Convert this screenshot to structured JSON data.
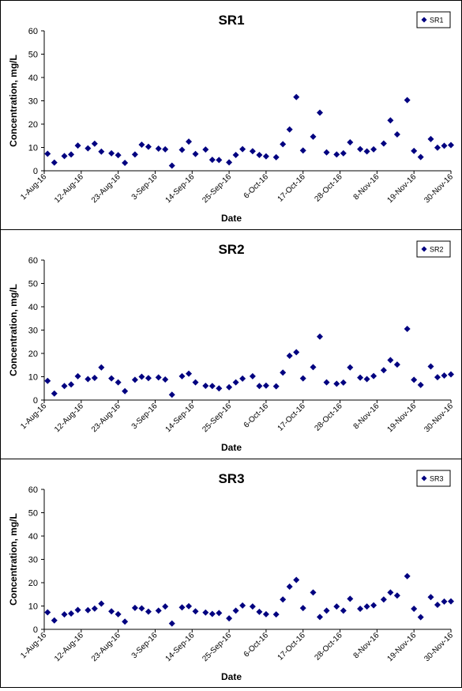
{
  "chart_data": [
    {
      "type": "scatter",
      "title": "SR1",
      "xlabel": "Date",
      "ylabel": "Concentration, mg/L",
      "ylim": [
        0,
        60
      ],
      "yticks": [
        "0",
        "10",
        "20",
        "30",
        "40",
        "50",
        "60"
      ],
      "xticks": [
        "1-Aug-16",
        "12-Aug-16",
        "23-Aug-16",
        "3-Sep-16",
        "14-Sep-16",
        "25-Sep-16",
        "6-Oct-16",
        "17-Oct-16",
        "28-Oct-16",
        "8-Nov-16",
        "19-Nov-16",
        "30-Nov-16"
      ],
      "grid": false,
      "legend_position": "top-right",
      "marker_color": "#000080",
      "series": [
        {
          "name": "SR1",
          "x": [
            "2016-08-02",
            "2016-08-04",
            "2016-08-07",
            "2016-08-09",
            "2016-08-11",
            "2016-08-14",
            "2016-08-16",
            "2016-08-18",
            "2016-08-21",
            "2016-08-23",
            "2016-08-25",
            "2016-08-28",
            "2016-08-30",
            "2016-09-01",
            "2016-09-04",
            "2016-09-06",
            "2016-09-08",
            "2016-09-11",
            "2016-09-13",
            "2016-09-15",
            "2016-09-18",
            "2016-09-20",
            "2016-09-22",
            "2016-09-25",
            "2016-09-27",
            "2016-09-29",
            "2016-10-02",
            "2016-10-04",
            "2016-10-06",
            "2016-10-09",
            "2016-10-11",
            "2016-10-13",
            "2016-10-15",
            "2016-10-17",
            "2016-10-20",
            "2016-10-22",
            "2016-10-24",
            "2016-10-27",
            "2016-10-29",
            "2016-10-31",
            "2016-11-03",
            "2016-11-05",
            "2016-11-07",
            "2016-11-10",
            "2016-11-12",
            "2016-11-14",
            "2016-11-17",
            "2016-11-19",
            "2016-11-21",
            "2016-11-24",
            "2016-11-26",
            "2016-11-28",
            "2016-11-30"
          ],
          "y": [
            7.3,
            3.5,
            6.3,
            7,
            10.8,
            9.6,
            11.6,
            8.2,
            7.5,
            6.7,
            3.4,
            7,
            11.2,
            10.3,
            9.5,
            9.2,
            2.2,
            9,
            12.5,
            7.2,
            9.1,
            4.7,
            4.6,
            3.6,
            6.8,
            9.3,
            8.4,
            6.8,
            6.2,
            5.8,
            11.4,
            17.7,
            31.6,
            8.7,
            14.6,
            24.9,
            7.9,
            7,
            7.5,
            12.2,
            9.3,
            8.3,
            9.2,
            11.7,
            21.6,
            15.6,
            30.3,
            8.5,
            5.9,
            13.6,
            9.9,
            10.7,
            11
          ]
        }
      ]
    },
    {
      "type": "scatter",
      "title": "SR2",
      "xlabel": "Date",
      "ylabel": "Concentration, mg/L",
      "ylim": [
        0,
        60
      ],
      "yticks": [
        "0",
        "10",
        "20",
        "30",
        "40",
        "50",
        "60"
      ],
      "xticks": [
        "1-Aug-16",
        "12-Aug-16",
        "23-Aug-16",
        "3-Sep-16",
        "14-Sep-16",
        "25-Sep-16",
        "6-Oct-16",
        "17-Oct-16",
        "28-Oct-16",
        "8-Nov-16",
        "19-Nov-16",
        "30-Nov-16"
      ],
      "grid": false,
      "legend_position": "top-right",
      "marker_color": "#000080",
      "series": [
        {
          "name": "SR2",
          "x": [
            "2016-08-02",
            "2016-08-04",
            "2016-08-07",
            "2016-08-09",
            "2016-08-11",
            "2016-08-14",
            "2016-08-16",
            "2016-08-18",
            "2016-08-21",
            "2016-08-23",
            "2016-08-25",
            "2016-08-28",
            "2016-08-30",
            "2016-09-01",
            "2016-09-04",
            "2016-09-06",
            "2016-09-08",
            "2016-09-11",
            "2016-09-13",
            "2016-09-15",
            "2016-09-18",
            "2016-09-20",
            "2016-09-22",
            "2016-09-25",
            "2016-09-27",
            "2016-09-29",
            "2016-10-02",
            "2016-10-04",
            "2016-10-06",
            "2016-10-09",
            "2016-10-11",
            "2016-10-13",
            "2016-10-15",
            "2016-10-17",
            "2016-10-20",
            "2016-10-22",
            "2016-10-24",
            "2016-10-27",
            "2016-10-29",
            "2016-10-31",
            "2016-11-03",
            "2016-11-05",
            "2016-11-07",
            "2016-11-10",
            "2016-11-12",
            "2016-11-14",
            "2016-11-17",
            "2016-11-19",
            "2016-11-21",
            "2016-11-24",
            "2016-11-26",
            "2016-11-28",
            "2016-11-30"
          ],
          "y": [
            8.2,
            2.8,
            6,
            6.7,
            10.2,
            9,
            9.5,
            14,
            9.3,
            7.6,
            3.8,
            8.7,
            10,
            9.4,
            9.7,
            8.8,
            2.3,
            10.2,
            11.3,
            7.6,
            6.1,
            6,
            5,
            5.5,
            7.6,
            9.2,
            10.2,
            6,
            6.2,
            5.9,
            11.8,
            19,
            20.5,
            9.3,
            14.1,
            27.2,
            7.6,
            7,
            7.5,
            14,
            9.6,
            9,
            10.3,
            12.8,
            17.1,
            15.2,
            30.5,
            8.7,
            6.5,
            14.4,
            9.8,
            10.5,
            11
          ]
        }
      ]
    },
    {
      "type": "scatter",
      "title": "SR3",
      "xlabel": "Date",
      "ylabel": "Concentration, mg/L",
      "ylim": [
        0,
        60
      ],
      "yticks": [
        "0",
        "10",
        "20",
        "30",
        "40",
        "50",
        "60"
      ],
      "xticks": [
        "1-Aug-16",
        "12-Aug-16",
        "23-Aug-16",
        "3-Sep-16",
        "14-Sep-16",
        "25-Sep-16",
        "6-Oct-16",
        "17-Oct-16",
        "28-Oct-16",
        "8-Nov-16",
        "19-Nov-16",
        "30-Nov-16"
      ],
      "grid": false,
      "legend_position": "top-right",
      "marker_color": "#000080",
      "series": [
        {
          "name": "SR3",
          "x": [
            "2016-08-02",
            "2016-08-04",
            "2016-08-07",
            "2016-08-09",
            "2016-08-11",
            "2016-08-14",
            "2016-08-16",
            "2016-08-18",
            "2016-08-21",
            "2016-08-23",
            "2016-08-25",
            "2016-08-28",
            "2016-08-30",
            "2016-09-01",
            "2016-09-04",
            "2016-09-06",
            "2016-09-08",
            "2016-09-11",
            "2016-09-13",
            "2016-09-15",
            "2016-09-18",
            "2016-09-20",
            "2016-09-22",
            "2016-09-25",
            "2016-09-27",
            "2016-09-29",
            "2016-10-02",
            "2016-10-04",
            "2016-10-06",
            "2016-10-09",
            "2016-10-11",
            "2016-10-13",
            "2016-10-15",
            "2016-10-17",
            "2016-10-20",
            "2016-10-22",
            "2016-10-24",
            "2016-10-27",
            "2016-10-29",
            "2016-10-31",
            "2016-11-03",
            "2016-11-05",
            "2016-11-07",
            "2016-11-10",
            "2016-11-12",
            "2016-11-14",
            "2016-11-17",
            "2016-11-19",
            "2016-11-21",
            "2016-11-24",
            "2016-11-26",
            "2016-11-28",
            "2016-11-30"
          ],
          "y": [
            7.3,
            3.8,
            6.4,
            6.8,
            8.3,
            8.2,
            8.9,
            11,
            7.7,
            6.5,
            3.3,
            9.2,
            9,
            7.6,
            8,
            9.8,
            2.5,
            9.4,
            9.9,
            7.7,
            7.2,
            6.6,
            7,
            4.7,
            8,
            10.2,
            9.8,
            7.5,
            6.5,
            6.4,
            12.8,
            18.3,
            21.2,
            9.1,
            15.8,
            5.3,
            8,
            9.8,
            8,
            13.1,
            8.8,
            9.8,
            10.3,
            12.8,
            15.8,
            14.5,
            22.8,
            8.8,
            5.2,
            13.8,
            10.5,
            11.9,
            12
          ]
        }
      ]
    }
  ]
}
